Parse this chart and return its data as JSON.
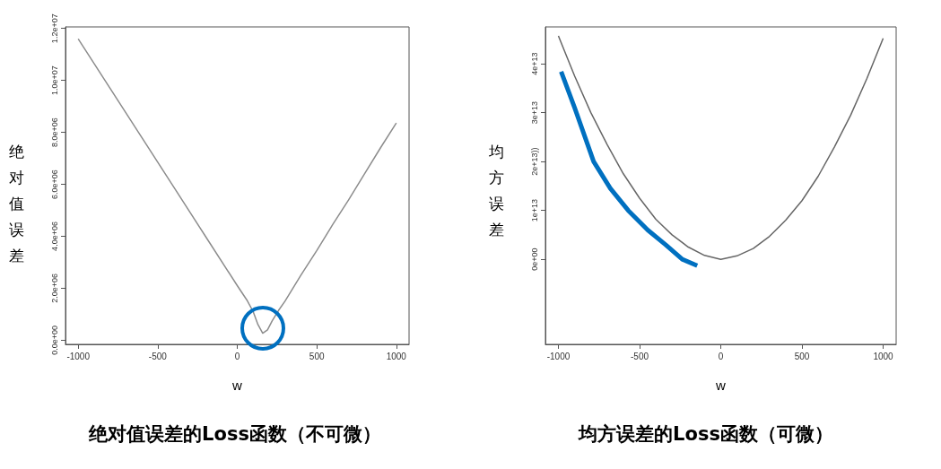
{
  "chart_data": [
    {
      "type": "line",
      "title": "绝对值误差的Loss函数（不可微）",
      "xlabel": "w",
      "ylabel": "绝对值误差",
      "x": [
        -1000,
        -800,
        -600,
        -400,
        -200,
        0,
        60,
        100,
        130,
        160,
        190,
        220,
        260,
        300,
        400,
        500,
        600,
        700,
        800,
        900,
        1000
      ],
      "series": [
        {
          "color": "#8c8c8c",
          "values": [
            11600000,
            9700000,
            7800000,
            5900000,
            4000000,
            2100000,
            1550000,
            1100000,
            600000,
            270000,
            400000,
            750000,
            1150000,
            1500000,
            2500000,
            3450000,
            4450000,
            5400000,
            6400000,
            7400000,
            8360000
          ]
        }
      ],
      "xlim": [
        -1080,
        1080
      ],
      "xticks": [
        -1000,
        -500,
        0,
        500,
        1000
      ],
      "ylim": [
        -160000,
        12060000
      ],
      "yticks": [
        {
          "value": 0,
          "label": "0.0e+00"
        },
        {
          "value": 2000000,
          "label": "2.0e+06"
        },
        {
          "value": 4000000,
          "label": "4.0e+06"
        },
        {
          "value": 6000000,
          "label": "6.0e+06"
        },
        {
          "value": 8000000,
          "label": "8.0e+06"
        },
        {
          "value": 10000000,
          "label": "1.0e+07"
        },
        {
          "value": 12000000,
          "label": "1.2e+07"
        }
      ],
      "grid": false,
      "marker": "none",
      "line_style": "solid"
    },
    {
      "type": "line",
      "title": "均方误差的Loss函数（可微）",
      "xlabel": "w",
      "ylabel": "均方误差",
      "series": [
        {
          "color": "#666666",
          "x": [
            -1000,
            -900,
            -800,
            -700,
            -600,
            -500,
            -400,
            -300,
            -200,
            -100,
            0,
            100,
            200,
            300,
            400,
            500,
            600,
            700,
            800,
            900,
            1000
          ],
          "values": [
            45700000000000,
            37500000000000,
            30000000000000,
            23500000000000,
            17500000000000,
            12500000000000,
            8200000000000,
            5000000000000,
            2500000000000,
            800000000000,
            0,
            700000000000,
            2200000000000,
            4700000000000,
            8000000000000,
            12000000000000,
            17000000000000,
            23000000000000,
            29500000000000,
            37000000000000,
            45200000000000
          ]
        },
        {
          "color": "#0070c0",
          "x": [
            -983,
            -900,
            -783,
            -680,
            -570,
            -450,
            -340,
            -237,
            -145
          ],
          "values": [
            38400000000000,
            31000000000000,
            20000000000000,
            14500000000000,
            10000000000000,
            6000000000000,
            3000000000000,
            0,
            -1300000000000
          ]
        }
      ],
      "xlim": [
        -1080,
        1080
      ],
      "xticks": [
        -1000,
        -500,
        0,
        500,
        1000
      ],
      "ylim": [
        -17400000000000,
        47550000000000
      ],
      "yticks": [
        {
          "value": 0,
          "label": "0e+00"
        },
        {
          "value": 10000000000000,
          "label": "1e+13"
        },
        {
          "value": 20000000000000,
          "label": "2e+13))"
        },
        {
          "value": 30000000000000,
          "label": "3e+13"
        },
        {
          "value": 40000000000000,
          "label": "4e+13"
        }
      ],
      "grid": false,
      "marker": "none",
      "line_style": "solid"
    }
  ]
}
